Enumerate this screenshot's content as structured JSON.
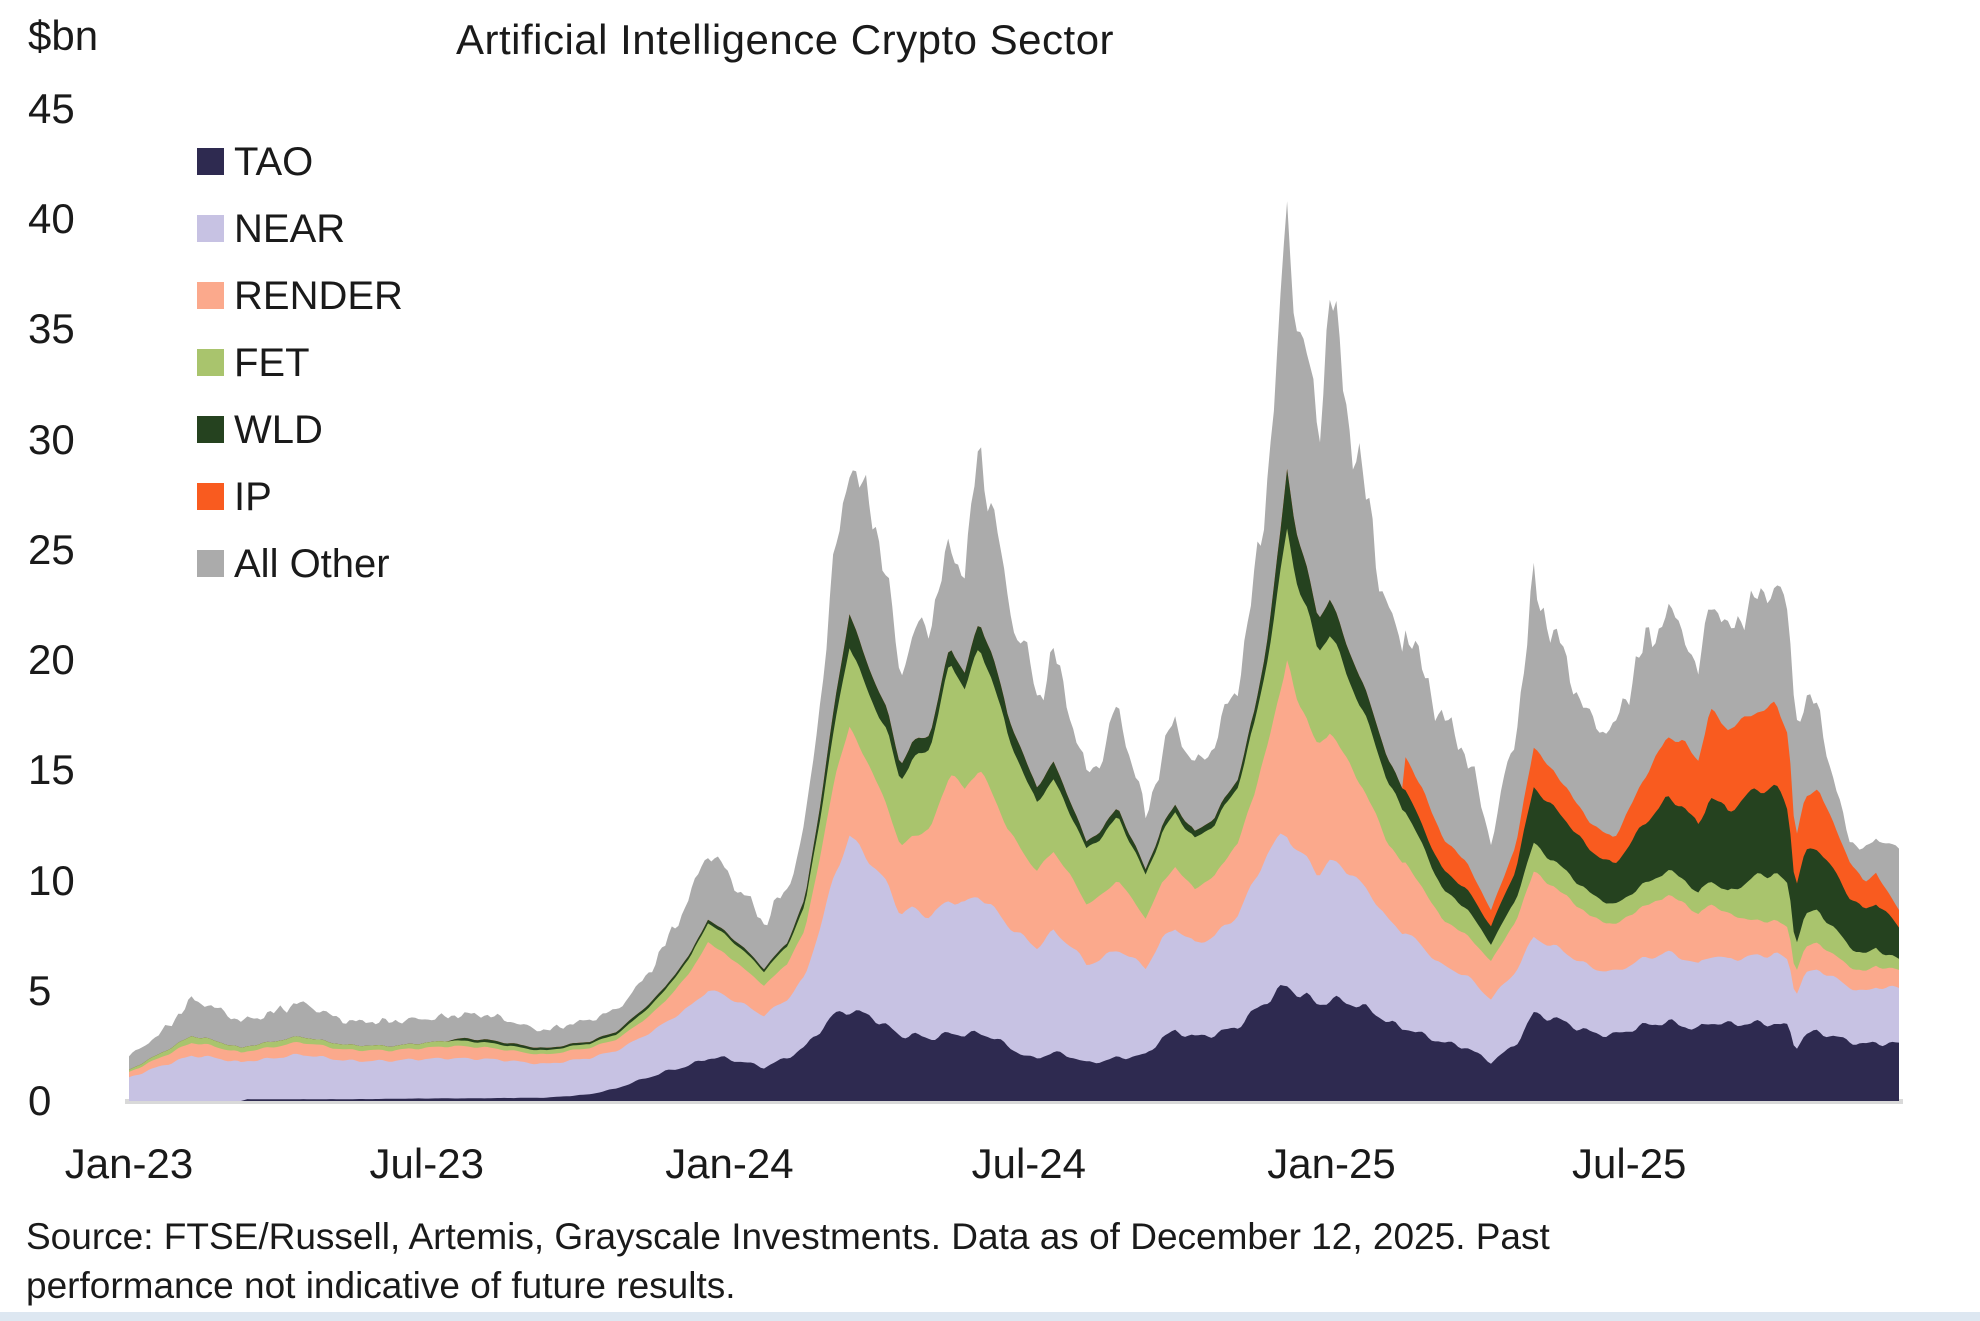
{
  "title": "Artificial Intelligence Crypto Sector",
  "y_axis": {
    "unit_label": "$bn",
    "ticks": [
      45,
      40,
      35,
      30,
      25,
      20,
      15,
      10,
      5,
      0
    ]
  },
  "x_axis": {
    "ticks": [
      {
        "label": "Jan-23",
        "date": "2023-01-01"
      },
      {
        "label": "Jul-23",
        "date": "2023-07-01"
      },
      {
        "label": "Jan-24",
        "date": "2024-01-01"
      },
      {
        "label": "Jul-24",
        "date": "2024-07-01"
      },
      {
        "label": "Jan-25",
        "date": "2025-01-01"
      },
      {
        "label": "Jul-25",
        "date": "2025-07-01"
      }
    ]
  },
  "legend": [
    {
      "label": "TAO",
      "color": "#2e2a50"
    },
    {
      "label": "NEAR",
      "color": "#c7c2e3"
    },
    {
      "label": "RENDER",
      "color": "#fba98c"
    },
    {
      "label": "FET",
      "color": "#a9c46d"
    },
    {
      "label": "WLD",
      "color": "#25421f"
    },
    {
      "label": "IP",
      "color": "#f95b1f"
    },
    {
      "label": "All Other",
      "color": "#ababab"
    }
  ],
  "source_note": "Source: FTSE/Russell, Artemis, Grayscale Investments. Data as of December 12, 2025. Past performance not indicative of future results.",
  "chart_data": {
    "type": "area",
    "subtype": "stacked-daily-market-cap",
    "unit": "$bn",
    "title": "Artificial Intelligence Crypto Sector",
    "ylim": [
      0,
      45
    ],
    "x_range": [
      "2023-01-01",
      "2025-12-12"
    ],
    "grid": false,
    "legend_position": "upper-left-inside",
    "stack_order": [
      "TAO",
      "NEAR",
      "RENDER",
      "FET",
      "WLD",
      "IP",
      "All Other"
    ],
    "keyframes_format": [
      "date",
      "TAO",
      "NEAR",
      "RENDER",
      "FET",
      "WLD",
      "IP",
      "All Other"
    ],
    "keyframes": [
      [
        "2023-01-01",
        0,
        1.05,
        0.25,
        0.1,
        0,
        0,
        0.6
      ],
      [
        "2023-01-20",
        0,
        1.6,
        0.4,
        0.18,
        0,
        0,
        0.95
      ],
      [
        "2023-02-08",
        0,
        2.05,
        0.58,
        0.3,
        0,
        0,
        1.6
      ],
      [
        "2023-02-20",
        0,
        1.95,
        0.52,
        0.28,
        0,
        0,
        1.45
      ],
      [
        "2023-03-10",
        0,
        1.75,
        0.45,
        0.22,
        0,
        0,
        1.25
      ],
      [
        "2023-03-14",
        0.08,
        1.76,
        0.46,
        0.22,
        0,
        0,
        1.26
      ],
      [
        "2023-04-15",
        0.08,
        2.0,
        0.55,
        0.26,
        0,
        0,
        1.45
      ],
      [
        "2023-05-12",
        0.08,
        1.78,
        0.5,
        0.22,
        0,
        0,
        1.15
      ],
      [
        "2023-06-10",
        0.1,
        1.7,
        0.46,
        0.2,
        0,
        0,
        1.05
      ],
      [
        "2023-07-13",
        0.12,
        1.85,
        0.55,
        0.25,
        0,
        0,
        1.15
      ],
      [
        "2023-07-24",
        0.12,
        1.82,
        0.54,
        0.24,
        0.12,
        0,
        1.1
      ],
      [
        "2023-08-12",
        0.13,
        1.72,
        0.5,
        0.22,
        0.13,
        0,
        1.05
      ],
      [
        "2023-09-11",
        0.15,
        1.55,
        0.42,
        0.18,
        0.1,
        0,
        0.85
      ],
      [
        "2023-10-08",
        0.3,
        1.62,
        0.46,
        0.2,
        0.1,
        0,
        0.92
      ],
      [
        "2023-10-24",
        0.55,
        1.72,
        0.52,
        0.23,
        0.12,
        0,
        1.02
      ],
      [
        "2023-11-09",
        1.0,
        1.95,
        0.7,
        0.35,
        0.15,
        0,
        1.35
      ],
      [
        "2023-11-23",
        1.35,
        2.2,
        0.95,
        0.5,
        0.15,
        0,
        1.85
      ],
      [
        "2023-12-08",
        1.6,
        2.62,
        1.55,
        0.7,
        0.15,
        0,
        2.48
      ],
      [
        "2023-12-19",
        1.9,
        3.1,
        2.2,
        0.9,
        0.16,
        0,
        3.2
      ],
      [
        "2023-12-28",
        1.95,
        2.92,
        1.95,
        0.85,
        0.15,
        0,
        2.95
      ],
      [
        "2024-01-10",
        1.8,
        2.62,
        1.62,
        0.76,
        0.15,
        0,
        2.45
      ],
      [
        "2024-01-22",
        1.55,
        2.32,
        1.32,
        0.66,
        0.13,
        0,
        1.98
      ],
      [
        "2024-02-05",
        1.92,
        2.62,
        1.62,
        0.82,
        0.16,
        0,
        2.35
      ],
      [
        "2024-02-16",
        2.4,
        3.2,
        2.2,
        1.1,
        0.3,
        0,
        3.3
      ],
      [
        "2024-02-26",
        3.3,
        4.9,
        3.3,
        1.8,
        0.6,
        0,
        5.3
      ],
      [
        "2024-03-05",
        4.0,
        6.4,
        4.4,
        2.3,
        1.0,
        0,
        6.6
      ],
      [
        "2024-03-14",
        4.2,
        7.9,
        4.8,
        3.7,
        1.5,
        0,
        6.9
      ],
      [
        "2024-03-21",
        4.0,
        7.3,
        4.5,
        3.4,
        1.3,
        0,
        6.5
      ],
      [
        "2024-03-27",
        3.8,
        6.9,
        4.2,
        3.3,
        1.25,
        0,
        7.6
      ],
      [
        "2024-04-06",
        3.3,
        6.4,
        3.6,
        3.4,
        0.95,
        0,
        5.6
      ],
      [
        "2024-04-14",
        2.9,
        5.6,
        3.1,
        3.0,
        0.7,
        0,
        4.4
      ],
      [
        "2024-04-21",
        3.0,
        5.8,
        3.3,
        3.4,
        0.75,
        0,
        5.0
      ],
      [
        "2024-05-02",
        2.9,
        5.6,
        3.9,
        3.6,
        0.65,
        0,
        5.3
      ],
      [
        "2024-05-14",
        3.1,
        6.0,
        5.6,
        5.0,
        0.75,
        0,
        4.3
      ],
      [
        "2024-05-23",
        3.0,
        5.85,
        5.2,
        4.7,
        0.72,
        0,
        4.4
      ],
      [
        "2024-06-01",
        3.0,
        6.2,
        5.8,
        5.6,
        1.2,
        0,
        7.6
      ],
      [
        "2024-06-09",
        2.85,
        5.9,
        5.3,
        5.2,
        1.1,
        0,
        7.0
      ],
      [
        "2024-06-18",
        2.5,
        5.6,
        4.4,
        4.2,
        0.9,
        0,
        5.4
      ],
      [
        "2024-07-01",
        2.0,
        5.3,
        3.6,
        3.3,
        0.8,
        0,
        5.0
      ],
      [
        "2024-07-06",
        2.0,
        5.0,
        3.4,
        3.1,
        0.7,
        0,
        3.8
      ],
      [
        "2024-07-16",
        2.2,
        5.4,
        3.6,
        3.3,
        0.8,
        0,
        4.7
      ],
      [
        "2024-07-26",
        2.0,
        5.0,
        3.2,
        2.9,
        0.6,
        0,
        3.9
      ],
      [
        "2024-08-05",
        1.7,
        4.5,
        2.8,
        2.5,
        0.3,
        0,
        3.1
      ],
      [
        "2024-08-14",
        1.8,
        4.7,
        2.9,
        2.6,
        0.35,
        0,
        3.45
      ],
      [
        "2024-08-24",
        2.0,
        5.0,
        3.1,
        2.8,
        0.4,
        0,
        4.7
      ],
      [
        "2024-09-10",
        2.1,
        3.9,
        2.2,
        2.0,
        0.25,
        0,
        2.25
      ],
      [
        "2024-09-20",
        2.8,
        4.4,
        2.6,
        2.3,
        0.3,
        0,
        3.1
      ],
      [
        "2024-09-28",
        3.1,
        4.7,
        2.8,
        2.5,
        0.35,
        0,
        3.9
      ],
      [
        "2024-10-10",
        2.9,
        4.3,
        2.5,
        2.2,
        0.3,
        0,
        3.1
      ],
      [
        "2024-10-22",
        3.1,
        4.5,
        2.7,
        2.3,
        0.32,
        0,
        3.45
      ],
      [
        "2024-11-05",
        3.4,
        5.0,
        3.2,
        2.6,
        0.38,
        0,
        4.1
      ],
      [
        "2024-11-15",
        4.0,
        5.8,
        4.0,
        3.2,
        0.55,
        0,
        5.5
      ],
      [
        "2024-11-22",
        4.4,
        6.6,
        4.8,
        3.8,
        0.85,
        0,
        7.1
      ],
      [
        "2024-12-01",
        5.0,
        7.0,
        6.8,
        5.2,
        1.8,
        0,
        10.0
      ],
      [
        "2024-12-05",
        5.2,
        7.0,
        7.9,
        5.9,
        2.7,
        0,
        12.5
      ],
      [
        "2024-12-10",
        5.0,
        6.6,
        7.0,
        5.3,
        2.2,
        0,
        10.5
      ],
      [
        "2024-12-17",
        4.8,
        6.3,
        6.3,
        4.8,
        1.85,
        0,
        9.6
      ],
      [
        "2024-12-24",
        4.5,
        5.9,
        5.6,
        4.3,
        1.55,
        0,
        8.3
      ],
      [
        "2024-12-31",
        4.6,
        6.2,
        5.8,
        4.5,
        1.6,
        0,
        13.3
      ],
      [
        "2025-01-08",
        4.5,
        6.0,
        5.2,
        4.1,
        1.4,
        0,
        10.8
      ],
      [
        "2025-01-18",
        4.2,
        5.6,
        4.6,
        3.6,
        1.25,
        0,
        9.4
      ],
      [
        "2025-01-27",
        4.0,
        5.2,
        4.1,
        3.2,
        1.1,
        0,
        8.4
      ],
      [
        "2025-02-04",
        3.6,
        4.7,
        3.5,
        2.7,
        1.0,
        0,
        7.0
      ],
      [
        "2025-02-13",
        3.4,
        4.4,
        3.1,
        2.4,
        1.0,
        0,
        6.4
      ],
      [
        "2025-02-15",
        3.4,
        4.4,
        3.05,
        2.35,
        1.0,
        1.5,
        6.2
      ],
      [
        "2025-02-26",
        3.0,
        3.9,
        2.6,
        1.9,
        0.9,
        1.7,
        5.0
      ],
      [
        "2025-03-10",
        2.6,
        3.4,
        2.1,
        1.4,
        0.9,
        1.4,
        5.2
      ],
      [
        "2025-03-24",
        2.4,
        3.3,
        1.9,
        1.2,
        0.85,
        1.2,
        5.25
      ],
      [
        "2025-04-08",
        1.8,
        2.9,
        1.7,
        0.75,
        0.8,
        0.75,
        3.3
      ],
      [
        "2025-04-23",
        2.6,
        3.3,
        2.2,
        1.0,
        1.4,
        1.1,
        4.9
      ],
      [
        "2025-05-04",
        3.9,
        3.4,
        3.0,
        1.3,
        2.6,
        1.8,
        7.0
      ],
      [
        "2025-05-14",
        3.7,
        3.3,
        2.8,
        1.2,
        2.4,
        1.6,
        6.5
      ],
      [
        "2025-05-25",
        3.5,
        3.2,
        2.6,
        1.1,
        2.2,
        1.5,
        5.9
      ],
      [
        "2025-06-06",
        3.2,
        3.0,
        2.3,
        1.0,
        2.0,
        1.3,
        4.7
      ],
      [
        "2025-06-22",
        3.0,
        2.8,
        2.1,
        0.9,
        1.9,
        1.2,
        4.6
      ],
      [
        "2025-07-08",
        3.3,
        3.0,
        2.4,
        1.0,
        2.6,
        1.9,
        6.0
      ],
      [
        "2025-07-24",
        3.6,
        3.2,
        2.6,
        1.1,
        3.2,
        2.8,
        6.0
      ],
      [
        "2025-08-03",
        3.5,
        3.1,
        2.5,
        1.05,
        3.3,
        3.0,
        5.2
      ],
      [
        "2025-08-12",
        3.3,
        2.9,
        2.2,
        0.95,
        3.2,
        3.0,
        3.7
      ],
      [
        "2025-08-19",
        3.6,
        3.0,
        2.3,
        1.1,
        3.9,
        3.9,
        4.9
      ],
      [
        "2025-08-30",
        3.4,
        2.9,
        2.1,
        1.0,
        3.7,
        3.6,
        4.3
      ],
      [
        "2025-09-16",
        3.5,
        3.1,
        1.6,
        2.0,
        3.8,
        3.5,
        5.4
      ],
      [
        "2025-09-28",
        3.6,
        3.2,
        1.5,
        2.1,
        3.9,
        3.9,
        5.6
      ],
      [
        "2025-10-06",
        3.4,
        3.0,
        1.4,
        1.9,
        3.6,
        3.4,
        5.3
      ],
      [
        "2025-10-10",
        2.4,
        2.4,
        1.0,
        1.3,
        2.6,
        2.2,
        5.4
      ],
      [
        "2025-10-16",
        3.0,
        2.7,
        1.2,
        1.5,
        2.9,
        2.5,
        4.0
      ],
      [
        "2025-10-24",
        3.1,
        2.8,
        1.2,
        1.5,
        2.9,
        2.6,
        3.7
      ],
      [
        "2025-10-31",
        2.9,
        2.7,
        1.1,
        1.3,
        2.6,
        2.2,
        2.2
      ],
      [
        "2025-11-12",
        2.7,
        2.5,
        0.95,
        0.9,
        2.2,
        1.6,
        1.05
      ],
      [
        "2025-11-21",
        2.6,
        2.4,
        0.9,
        0.75,
        2.0,
        1.3,
        1.45
      ],
      [
        "2025-11-28",
        2.7,
        2.55,
        0.95,
        0.8,
        2.1,
        1.4,
        1.6
      ],
      [
        "2025-12-05",
        2.65,
        2.5,
        0.85,
        0.6,
        1.9,
        1.0,
        2.2
      ],
      [
        "2025-12-12",
        2.6,
        2.5,
        0.8,
        0.5,
        1.5,
        0.8,
        2.4
      ]
    ],
    "jitter": 0.09
  }
}
